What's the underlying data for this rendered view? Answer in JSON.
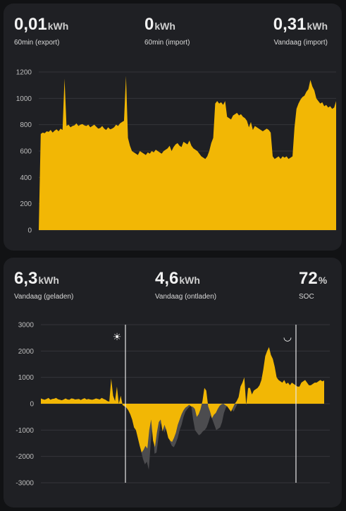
{
  "grid_card": {
    "stats": [
      {
        "value": "0,01",
        "unit": "kWh",
        "label": "60min (export)"
      },
      {
        "value": "0",
        "unit": "kWh",
        "label": "60min (import)"
      },
      {
        "value": "0,31",
        "unit": "kWh",
        "label": "Vandaag (import)"
      }
    ]
  },
  "battery_card": {
    "stats": [
      {
        "value": "6,3",
        "unit": "kWh",
        "label": "Vandaag (geladen)"
      },
      {
        "value": "4,6",
        "unit": "kWh",
        "label": "Vandaag (ontladen)"
      },
      {
        "value": "72",
        "unit": "%",
        "label": "SOC"
      }
    ],
    "markers": [
      {
        "icon": "sun-icon",
        "glyph": "☀"
      },
      {
        "icon": "moon-icon",
        "glyph": "◡"
      }
    ]
  },
  "colors": {
    "fill": "#f2b705",
    "secondary": "#4c4c4f",
    "card": "#1f2024",
    "background": "#111214"
  },
  "chart_data": [
    {
      "type": "area",
      "ylim": [
        0,
        1200
      ],
      "yticks": [
        0,
        200,
        400,
        600,
        800,
        1000,
        1200
      ],
      "series": [
        {
          "values": [
            0,
            730,
            740,
            735,
            750,
            745,
            760,
            740,
            755,
            765,
            750,
            770,
            760,
            1150,
            790,
            800,
            780,
            790,
            795,
            810,
            790,
            800,
            805,
            795,
            790,
            800,
            780,
            790,
            800,
            785,
            770,
            775,
            790,
            770,
            760,
            780,
            765,
            770,
            780,
            800,
            790,
            810,
            820,
            830,
            1170,
            700,
            640,
            600,
            590,
            580,
            570,
            600,
            590,
            580,
            570,
            590,
            580,
            600,
            590,
            610,
            600,
            590,
            580,
            600,
            610,
            620,
            640,
            600,
            630,
            650,
            660,
            640,
            630,
            670,
            660,
            650,
            680,
            640,
            620,
            610,
            600,
            580,
            560,
            550,
            540,
            560,
            600,
            660,
            700,
            960,
            980,
            960,
            970,
            950,
            980,
            860,
            850,
            840,
            870,
            880,
            890,
            870,
            880,
            860,
            850,
            830,
            780,
            820,
            760,
            790,
            780,
            770,
            760,
            750,
            760,
            770,
            760,
            740,
            560,
            540,
            550,
            560,
            540,
            560,
            550,
            560,
            540,
            550,
            560,
            780,
            920,
            960,
            990,
            1010,
            1020,
            1050,
            1070,
            1140,
            1090,
            1060,
            1000,
            980,
            960,
            970,
            940,
            950,
            930,
            940,
            920,
            930,
            980
          ]
        }
      ]
    },
    {
      "type": "area",
      "ylim": [
        -3000,
        3000
      ],
      "yticks": [
        -3000,
        -2000,
        -1000,
        0,
        1000,
        2000,
        3000
      ],
      "series": [
        {
          "values": [
            200,
            170,
            150,
            180,
            220,
            150,
            180,
            190,
            220,
            170,
            150,
            130,
            160,
            200,
            160,
            150,
            200,
            190,
            160,
            170,
            180,
            140,
            180,
            210,
            160,
            180,
            160,
            150,
            170,
            200,
            180,
            160,
            220,
            180,
            150,
            100,
            80,
            950,
            300,
            100,
            650,
            0,
            300,
            -50,
            -100,
            -150,
            -250,
            -400,
            -600,
            -900,
            -1000,
            -1300,
            -1600,
            -1850,
            -1750,
            -1600,
            -1700,
            -1000,
            -600,
            -1400,
            -1650,
            -1100,
            -700,
            -600,
            -1050,
            -800,
            -1000,
            -1300,
            -1400,
            -1450,
            -1300,
            -1100,
            -800,
            -600,
            -400,
            -250,
            -150,
            -100,
            -40,
            -100,
            -120,
            -200,
            -500,
            -400,
            -200,
            100,
            600,
            500,
            -100,
            -300,
            -550,
            -420,
            -350,
            -200,
            -80,
            -20,
            0,
            -50,
            -100,
            -200,
            -300,
            -150,
            0,
            100,
            250,
            650,
            800,
            1000,
            -50,
            600,
            600,
            350,
            500,
            550,
            600,
            700,
            900,
            1300,
            1800,
            2000,
            2150,
            1850,
            1700,
            1400,
            1000,
            900,
            850,
            800,
            900,
            750,
            800,
            700,
            800,
            750,
            700,
            650,
            650,
            800,
            850,
            900,
            800,
            700,
            700,
            750,
            800,
            800,
            850,
            900,
            850,
            880
          ],
          "start": 0
        },
        {
          "values": [
            0,
            0,
            0,
            0,
            0,
            0,
            0,
            0,
            0,
            0,
            0,
            0,
            0,
            0,
            0,
            0,
            0,
            0,
            0,
            0,
            0,
            0,
            0,
            0,
            0,
            0,
            0,
            0,
            0,
            0,
            0,
            0,
            0,
            0,
            0,
            0,
            0,
            0,
            0,
            0,
            0,
            0,
            0,
            -50,
            -100,
            -150,
            -250,
            -400,
            -600,
            -900,
            -1050,
            -1450,
            -1800,
            -2100,
            -2300,
            -2200,
            -2500,
            -1500,
            -800,
            -1900,
            -1850,
            -1300,
            -800,
            -650,
            -1100,
            -900,
            -1100,
            -1450,
            -1600,
            -1650,
            -1500,
            -1300,
            -1000,
            -800,
            -500,
            -300,
            -200,
            -120,
            -60,
            -600,
            -1000,
            -1100,
            -1200,
            -1150,
            -1050,
            -1000,
            -900,
            -700,
            -450,
            -600,
            -800,
            -1000,
            -950,
            -900,
            -700,
            -350,
            -150,
            -50,
            -100,
            -200,
            -300,
            -150,
            0,
            0,
            0,
            0,
            0,
            0,
            0,
            0,
            0,
            0,
            0,
            0,
            0,
            0,
            0,
            0,
            0,
            0,
            0,
            0,
            0,
            0,
            0,
            0,
            0,
            0,
            0,
            0,
            0,
            0,
            0,
            0,
            0,
            0,
            0,
            0,
            0,
            0,
            0,
            0,
            0,
            0,
            0,
            0,
            0,
            0
          ]
        }
      ]
    }
  ]
}
